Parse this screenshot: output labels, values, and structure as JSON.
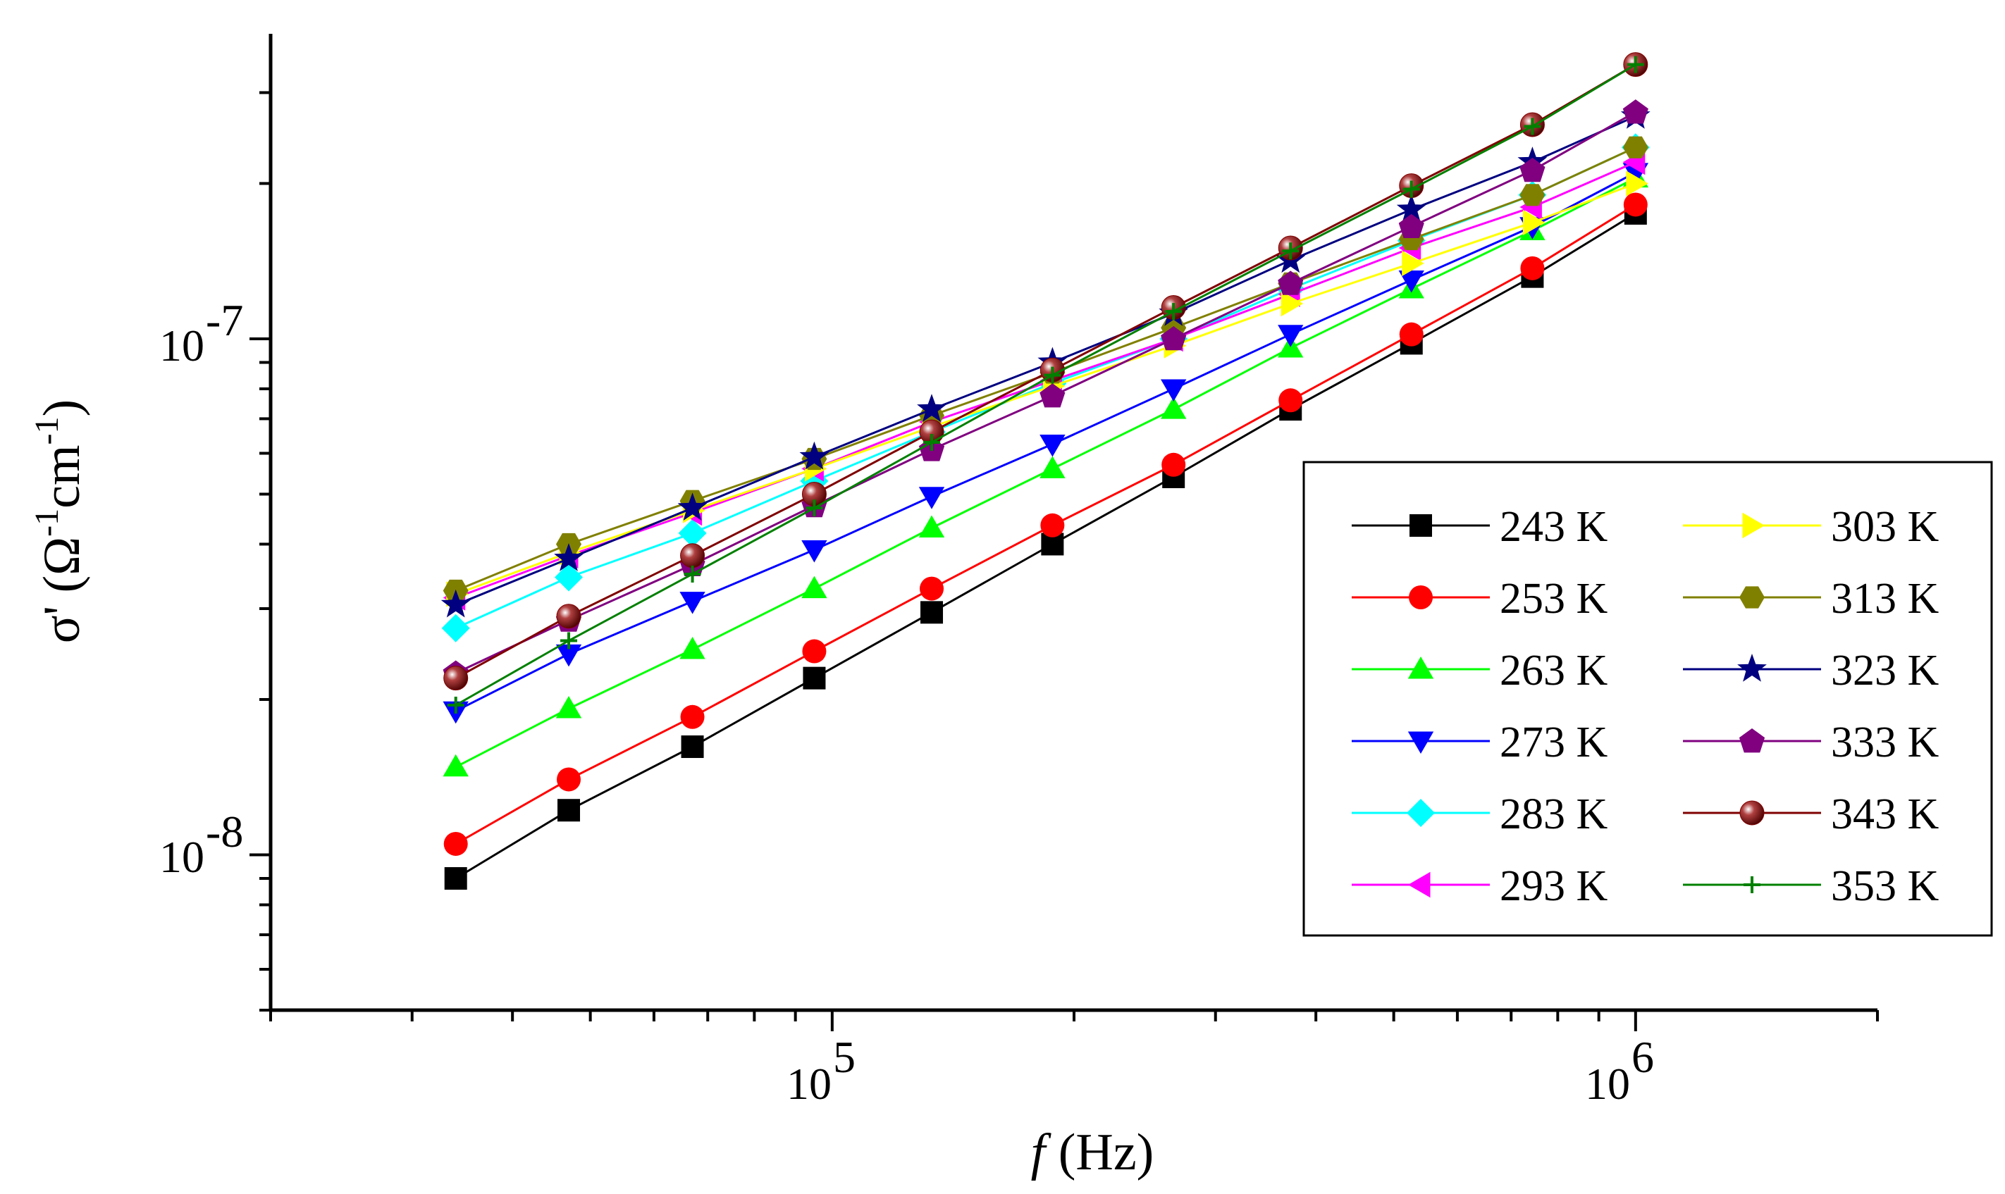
{
  "chart_data": {
    "type": "line",
    "scale": "log-log",
    "title": "",
    "xlabel": {
      "italic": "f",
      "rest": " (Hz)"
    },
    "ylabel": {
      "sigma": "σ'",
      "open": " (Ω",
      "exp1": "-1",
      "mid": "cm",
      "exp2": "-1",
      "close": ")"
    },
    "xlim": [
      20000,
      2000000
    ],
    "ylim": [
      5e-09,
      3.9e-07
    ],
    "x_ticks": [
      {
        "value": 100000,
        "base": "10",
        "exp": "5"
      },
      {
        "value": 1000000,
        "base": "10",
        "exp": "6"
      }
    ],
    "y_ticks": [
      {
        "value": 1e-08,
        "base": "10",
        "exp": "-8"
      },
      {
        "value": 1e-07,
        "base": "10",
        "exp": "-7"
      }
    ],
    "x": [
      34000,
      47000,
      67000,
      95000,
      133000,
      188000,
      266000,
      372000,
      526000,
      744000,
      1000000
    ],
    "series": [
      {
        "name": "243 K",
        "color": "#000000",
        "marker": "square",
        "values": [
          9e-09,
          1.22e-08,
          1.62e-08,
          2.2e-08,
          2.95e-08,
          4e-08,
          5.4e-08,
          7.3e-08,
          9.8e-08,
          1.32e-07,
          1.75e-07
        ]
      },
      {
        "name": "253 K",
        "color": "#ff0000",
        "marker": "circle",
        "values": [
          1.05e-08,
          1.4e-08,
          1.85e-08,
          2.48e-08,
          3.28e-08,
          4.35e-08,
          5.7e-08,
          7.6e-08,
          1.02e-07,
          1.37e-07,
          1.82e-07
        ]
      },
      {
        "name": "263 K",
        "color": "#00ff00",
        "marker": "triangle-up",
        "values": [
          1.48e-08,
          1.92e-08,
          2.5e-08,
          3.28e-08,
          4.3e-08,
          5.6e-08,
          7.3e-08,
          9.6e-08,
          1.25e-07,
          1.62e-07,
          2.05e-07
        ]
      },
      {
        "name": "273 K",
        "color": "#0000ff",
        "marker": "triangle-down",
        "values": [
          1.9e-08,
          2.45e-08,
          3.1e-08,
          3.9e-08,
          4.95e-08,
          6.25e-08,
          8e-08,
          1.02e-07,
          1.3e-07,
          1.65e-07,
          2.1e-07
        ]
      },
      {
        "name": "283 K",
        "color": "#00ffff",
        "marker": "diamond",
        "values": [
          2.75e-08,
          3.45e-08,
          4.2e-08,
          5.3e-08,
          6.6e-08,
          8.2e-08,
          1e-07,
          1.25e-07,
          1.55e-07,
          1.9e-07,
          2.35e-07
        ]
      },
      {
        "name": "293 K",
        "color": "#ff00ff",
        "marker": "triangle-left",
        "values": [
          3.15e-08,
          3.8e-08,
          4.6e-08,
          5.6e-08,
          6.9e-08,
          8.3e-08,
          1e-07,
          1.22e-07,
          1.5e-07,
          1.8e-07,
          2.2e-07
        ]
      },
      {
        "name": "303 K",
        "color": "#ffff00",
        "marker": "triangle-right",
        "values": [
          3.2e-08,
          3.85e-08,
          4.65e-08,
          5.6e-08,
          6.75e-08,
          8.1e-08,
          9.7e-08,
          1.17e-07,
          1.4e-07,
          1.68e-07,
          2e-07
        ]
      },
      {
        "name": "313 K",
        "color": "#808000",
        "marker": "hexagon",
        "values": [
          3.25e-08,
          4e-08,
          4.85e-08,
          5.85e-08,
          7.1e-08,
          8.6e-08,
          1.05e-07,
          1.28e-07,
          1.56e-07,
          1.9e-07,
          2.35e-07
        ]
      },
      {
        "name": "323 K",
        "color": "#000080",
        "marker": "star",
        "values": [
          3.05e-08,
          3.75e-08,
          4.7e-08,
          5.9e-08,
          7.3e-08,
          9e-08,
          1.12e-07,
          1.42e-07,
          1.78e-07,
          2.2e-07,
          2.7e-07
        ]
      },
      {
        "name": "333 K",
        "color": "#800080",
        "marker": "pentagon",
        "values": [
          2.25e-08,
          2.85e-08,
          3.65e-08,
          4.75e-08,
          6.1e-08,
          7.75e-08,
          1e-07,
          1.28e-07,
          1.65e-07,
          2.12e-07,
          2.75e-07
        ]
      },
      {
        "name": "343 K",
        "color": "#800000",
        "marker": "sphere",
        "values": [
          2.2e-08,
          2.9e-08,
          3.8e-08,
          5e-08,
          6.6e-08,
          8.7e-08,
          1.15e-07,
          1.5e-07,
          1.98e-07,
          2.6e-07,
          3.4e-07
        ]
      },
      {
        "name": "353 K",
        "color": "#008000",
        "marker": "plus",
        "values": [
          1.95e-08,
          2.6e-08,
          3.5e-08,
          4.7e-08,
          6.3e-08,
          8.5e-08,
          1.13e-07,
          1.48e-07,
          1.95e-07,
          2.58e-07,
          3.4e-07
        ]
      }
    ],
    "legend": {
      "location": "bottom-right",
      "columns": 2
    }
  }
}
